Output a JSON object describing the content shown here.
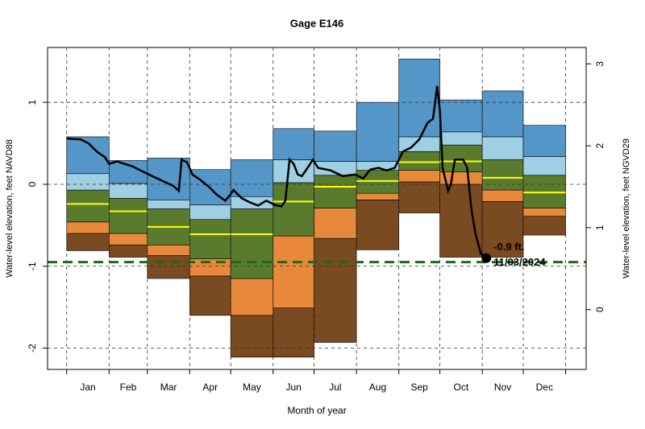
{
  "chart_data": {
    "type": "percentile-bands",
    "title": "Gage E146",
    "x_label": "Month of year",
    "y_label": "Water-level elevation, feet NAVD88",
    "y2_label": "Water-level elevation, feet NGVD29",
    "categories": [
      "Jan",
      "Feb",
      "Mar",
      "Apr",
      "May",
      "Jun",
      "Jul",
      "Aug",
      "Sep",
      "Oct",
      "Nov",
      "Dec"
    ],
    "xlim": [
      -14,
      380
    ],
    "xticks": [
      0,
      31,
      59,
      90,
      120,
      151,
      181,
      212,
      243,
      273,
      304,
      334,
      365
    ],
    "ylim": [
      -2.26,
      1.67
    ],
    "yticks": [
      -2,
      -1,
      0,
      1
    ],
    "y2lim": [
      -0.73,
      3.2
    ],
    "y2ticks": [
      0,
      1,
      2,
      3
    ],
    "grid": true,
    "levels": [
      {
        "values": [
          -0.81,
          -0.89,
          -1.15,
          -1.6,
          -2.11,
          -2.11,
          -1.93,
          -0.8,
          -0.35,
          -0.89,
          -0.89,
          -0.62
        ]
      },
      {
        "values": [
          -0.6,
          -0.74,
          -0.87,
          -1.12,
          -1.6,
          -1.51,
          -0.66,
          -0.19,
          0.03,
          0.0,
          -0.21,
          -0.39
        ]
      },
      {
        "values": [
          -0.46,
          -0.6,
          -0.74,
          -0.91,
          -1.15,
          -0.63,
          -0.29,
          -0.11,
          0.17,
          0.15,
          -0.07,
          -0.29
        ]
      },
      {
        "values": [
          -0.07,
          -0.17,
          -0.3,
          -0.43,
          -0.3,
          0.02,
          0.11,
          0.17,
          0.4,
          0.48,
          0.3,
          0.11
        ]
      },
      {
        "values": [
          0.13,
          0.01,
          -0.19,
          -0.25,
          -0.15,
          0.3,
          0.28,
          0.28,
          0.58,
          0.64,
          0.58,
          0.34
        ]
      },
      {
        "values": [
          0.58,
          0.29,
          0.32,
          0.18,
          0.3,
          0.68,
          0.65,
          1.0,
          1.53,
          1.03,
          1.14,
          0.72
        ]
      }
    ],
    "band_colors": [
      "#7a4a21",
      "#e8883a",
      "#5a7b2e",
      "#9ecfe3",
      "#5596c8"
    ],
    "median": {
      "color": "#ffff00",
      "values": [
        -0.24,
        -0.33,
        -0.52,
        -0.61,
        -0.61,
        -0.21,
        -0.03,
        0.04,
        0.27,
        0.28,
        0.08,
        -0.1
      ]
    },
    "line": {
      "color": "#000000",
      "x": [
        0,
        7,
        10,
        16,
        22,
        28,
        31,
        37,
        42,
        48,
        54,
        60,
        69,
        78,
        82,
        84,
        88,
        92,
        98,
        104,
        110,
        116,
        120,
        122,
        128,
        134,
        140,
        146,
        152,
        157,
        160,
        163,
        166,
        169,
        172,
        177,
        180,
        184,
        193,
        202,
        211,
        217,
        222,
        228,
        234,
        240,
        246,
        252,
        258,
        264,
        268,
        271,
        273,
        275,
        279,
        281,
        284,
        290,
        293,
        296,
        299,
        303,
        307
      ],
      "values": [
        0.56,
        0.55,
        0.55,
        0.5,
        0.4,
        0.33,
        0.25,
        0.28,
        0.25,
        0.22,
        0.17,
        0.12,
        0.05,
        -0.02,
        -0.08,
        0.3,
        0.27,
        0.12,
        0.05,
        -0.03,
        -0.13,
        -0.2,
        -0.12,
        -0.07,
        -0.17,
        -0.22,
        -0.26,
        -0.2,
        -0.25,
        -0.27,
        -0.2,
        0.3,
        0.25,
        0.12,
        0.1,
        0.22,
        0.3,
        0.2,
        0.17,
        0.1,
        0.12,
        0.07,
        0.18,
        0.2,
        0.17,
        0.2,
        0.4,
        0.45,
        0.55,
        0.75,
        0.8,
        1.2,
        0.9,
        0.2,
        -0.08,
        0.0,
        0.3,
        0.3,
        0.2,
        -0.3,
        -0.6,
        -0.85,
        -0.9
      ]
    },
    "reference_line": {
      "value": -0.95,
      "color": "#1a6b1a"
    },
    "annotations": [
      "-0.9 ft.",
      "11/03/2024"
    ]
  }
}
